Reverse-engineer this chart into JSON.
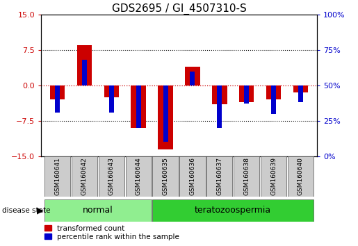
{
  "title": "GDS2695 / GI_4507310-S",
  "samples": [
    "GSM160641",
    "GSM160642",
    "GSM160643",
    "GSM160644",
    "GSM160635",
    "GSM160636",
    "GSM160637",
    "GSM160638",
    "GSM160639",
    "GSM160640"
  ],
  "red_values": [
    -3.0,
    8.5,
    -2.5,
    -9.0,
    -13.5,
    4.0,
    -4.0,
    -3.5,
    -3.0,
    -1.5
  ],
  "blue_percentiles": [
    31,
    68,
    31,
    20,
    10,
    60,
    20,
    37,
    30,
    38
  ],
  "ylim": [
    -15,
    15
  ],
  "yticks_left": [
    -15,
    -7.5,
    0,
    7.5,
    15
  ],
  "group_labels": [
    "normal",
    "teratozoospermia"
  ],
  "normal_color": "#90EE90",
  "terato_color": "#32CD32",
  "red_color": "#CC0000",
  "blue_color": "#0000CC",
  "legend_red": "transformed count",
  "legend_blue": "percentile rank within the sample",
  "title_fontsize": 11
}
